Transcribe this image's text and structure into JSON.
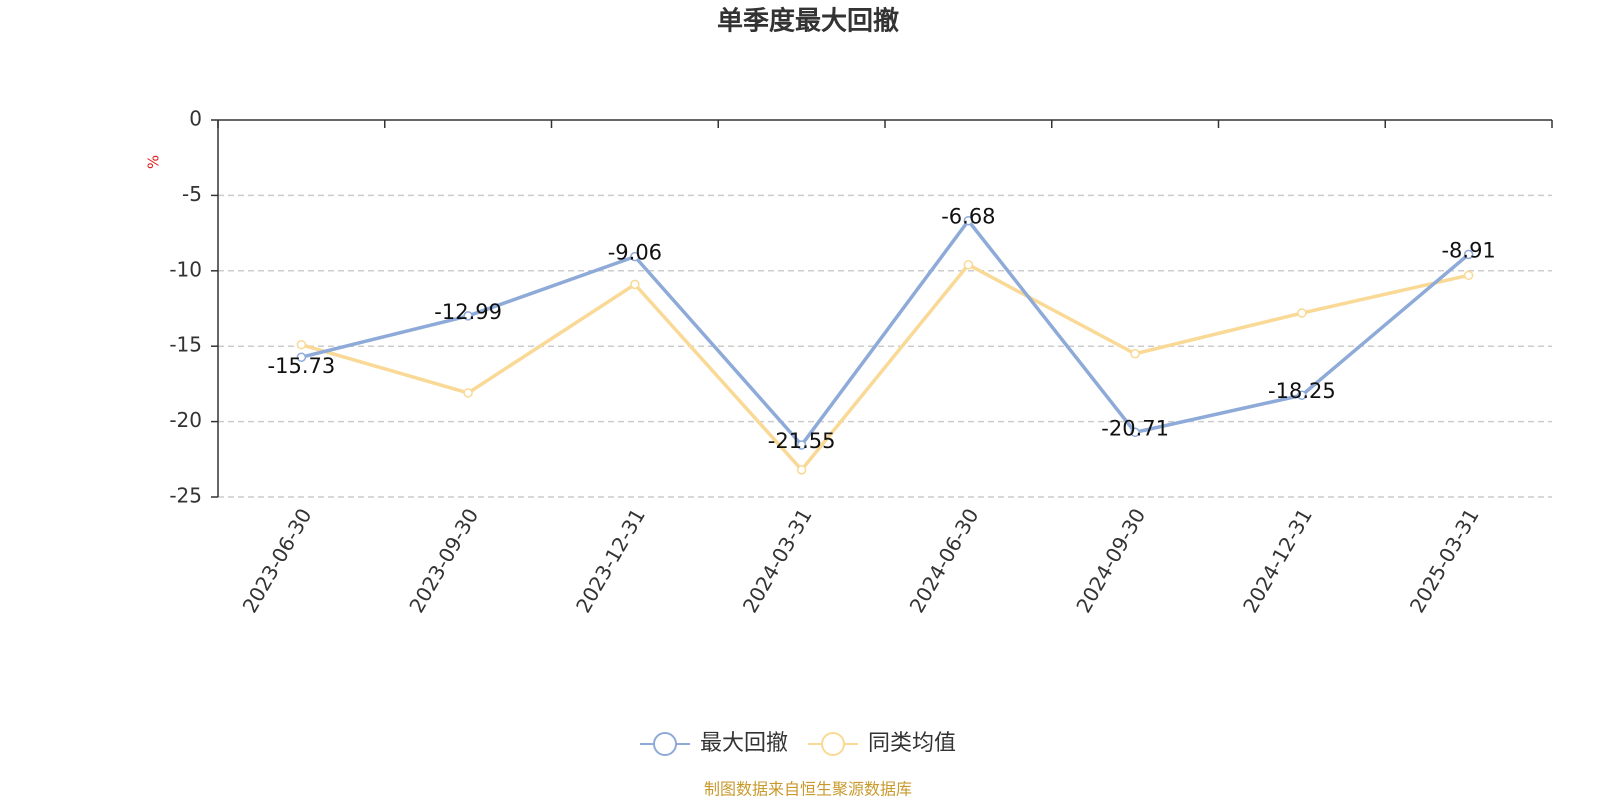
{
  "chart_data": {
    "type": "line",
    "title": "单季度最大回撤",
    "y_label": "%",
    "categories": [
      "2023-06-30",
      "2023-09-30",
      "2023-12-31",
      "2024-03-31",
      "2024-06-30",
      "2024-09-30",
      "2024-12-31",
      "2025-03-31"
    ],
    "series": [
      {
        "name": "最大回撤",
        "color": "#8eaad8",
        "values": [
          -15.73,
          -12.99,
          -9.06,
          -21.55,
          -6.68,
          -20.71,
          -18.25,
          -8.91
        ],
        "labels": true
      },
      {
        "name": "同类均值",
        "color": "#f9d995",
        "values": [
          -14.9,
          -18.1,
          -10.9,
          -23.2,
          -9.6,
          -15.5,
          -12.8,
          -10.3
        ],
        "labels": false
      }
    ],
    "ylim": [
      -25,
      0
    ],
    "yticks": [
      0,
      -5,
      -10,
      -15,
      -20,
      -25
    ],
    "grid": true,
    "legend": "bottom",
    "source": "制图数据来自恒生聚源数据库"
  }
}
